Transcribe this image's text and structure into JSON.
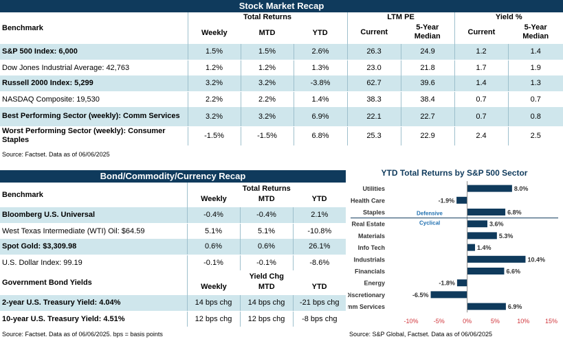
{
  "stock": {
    "title": "Stock Market Recap",
    "groups": {
      "total_returns": "Total Returns",
      "ltm_pe": "LTM PE",
      "yield": "Yield %"
    },
    "headers": {
      "benchmark": "Benchmark",
      "weekly": "Weekly",
      "mtd": "MTD",
      "ytd": "YTD",
      "pe_current": "Current",
      "pe_median": "5-Year Median",
      "yield_current": "Current",
      "yield_median": "5-Year Median"
    },
    "rows": [
      {
        "name": "S&P 500 Index: 6,000",
        "weekly": "1.5%",
        "mtd": "1.5%",
        "ytd": "2.6%",
        "pe_cur": "26.3",
        "pe_med": "24.9",
        "y_cur": "1.2",
        "y_med": "1.4"
      },
      {
        "name": "Dow Jones Industrial Average: 42,763",
        "weekly": "1.2%",
        "mtd": "1.2%",
        "ytd": "1.3%",
        "pe_cur": "23.0",
        "pe_med": "21.8",
        "y_cur": "1.7",
        "y_med": "1.9"
      },
      {
        "name": "Russell 2000 Index: 5,299",
        "weekly": "3.2%",
        "mtd": "3.2%",
        "ytd": "-3.8%",
        "pe_cur": "62.7",
        "pe_med": "39.6",
        "y_cur": "1.4",
        "y_med": "1.3"
      },
      {
        "name": "NASDAQ Composite: 19,530",
        "weekly": "2.2%",
        "mtd": "2.2%",
        "ytd": "1.4%",
        "pe_cur": "38.3",
        "pe_med": "38.4",
        "y_cur": "0.7",
        "y_med": "0.7"
      },
      {
        "name": "Best Performing Sector (weekly): Comm Services",
        "weekly": "3.2%",
        "mtd": "3.2%",
        "ytd": "6.9%",
        "pe_cur": "22.1",
        "pe_med": "22.7",
        "y_cur": "0.7",
        "y_med": "0.8"
      },
      {
        "name": "Worst Performing Sector (weekly): Consumer Staples",
        "weekly": "-1.5%",
        "mtd": "-1.5%",
        "ytd": "6.8%",
        "pe_cur": "25.3",
        "pe_med": "22.9",
        "y_cur": "2.4",
        "y_med": "2.5"
      }
    ],
    "source": "Source: Factset. Data as of 06/06/2025"
  },
  "bond": {
    "title": "Bond/Commodity/Currency Recap",
    "headers": {
      "benchmark": "Benchmark",
      "group": "Total Returns",
      "weekly": "Weekly",
      "mtd": "MTD",
      "ytd": "YTD"
    },
    "rows": [
      {
        "name": "Bloomberg U.S. Universal",
        "weekly": "-0.4%",
        "mtd": "-0.4%",
        "ytd": "2.1%"
      },
      {
        "name": "West Texas Intermediate (WTI) Oil: $64.59",
        "weekly": "5.1%",
        "mtd": "5.1%",
        "ytd": "-10.8%"
      },
      {
        "name": "Spot Gold: $3,309.98",
        "weekly": "0.6%",
        "mtd": "0.6%",
        "ytd": "26.1%"
      },
      {
        "name": "U.S. Dollar Index: 99.19",
        "weekly": "-0.1%",
        "mtd": "-0.1%",
        "ytd": "-8.6%"
      }
    ],
    "gov": {
      "label": "Government Bond Yields",
      "group": "Yield Chg",
      "weekly": "Weekly",
      "mtd": "MTD",
      "ytd": "YTD",
      "rows": [
        {
          "name": "2-year U.S. Treasury Yield: 4.04%",
          "weekly": "14 bps chg",
          "mtd": "14 bps chg",
          "ytd": "-21 bps chg"
        },
        {
          "name": "10-year U.S. Treasury Yield: 4.51%",
          "weekly": "12 bps chg",
          "mtd": "12 bps chg",
          "ytd": "-8 bps chg"
        }
      ]
    },
    "source": "Source: Factset. Data as of 06/06/2025. bps = basis points"
  },
  "chart_data": {
    "type": "bar",
    "orientation": "horizontal",
    "title": "YTD Total Returns by S&P 500 Sector",
    "categories": [
      "Utilities",
      "Health Care",
      "Staples",
      "Real Estate",
      "Materials",
      "Info Tech",
      "Industrials",
      "Financials",
      "Energy",
      "Discretionary",
      "Comm Services"
    ],
    "values": [
      8.0,
      -1.9,
      6.8,
      3.6,
      5.3,
      1.4,
      10.4,
      6.6,
      -1.8,
      -6.5,
      6.9
    ],
    "value_labels": [
      "8.0%",
      "-1.9%",
      "6.8%",
      "3.6%",
      "5.3%",
      "1.4%",
      "10.4%",
      "6.6%",
      "-1.8%",
      "-6.5%",
      "6.9%"
    ],
    "xlim": [
      -10,
      15
    ],
    "xticks": [
      "-10%",
      "-5%",
      "0%",
      "5%",
      "10%",
      "15%"
    ],
    "annotations": [
      "Defensive",
      "Cyclical"
    ],
    "bar_color": "#0f3a5c",
    "source": "Source: S&P Global, Factset. Data as of 06/06/2025"
  }
}
